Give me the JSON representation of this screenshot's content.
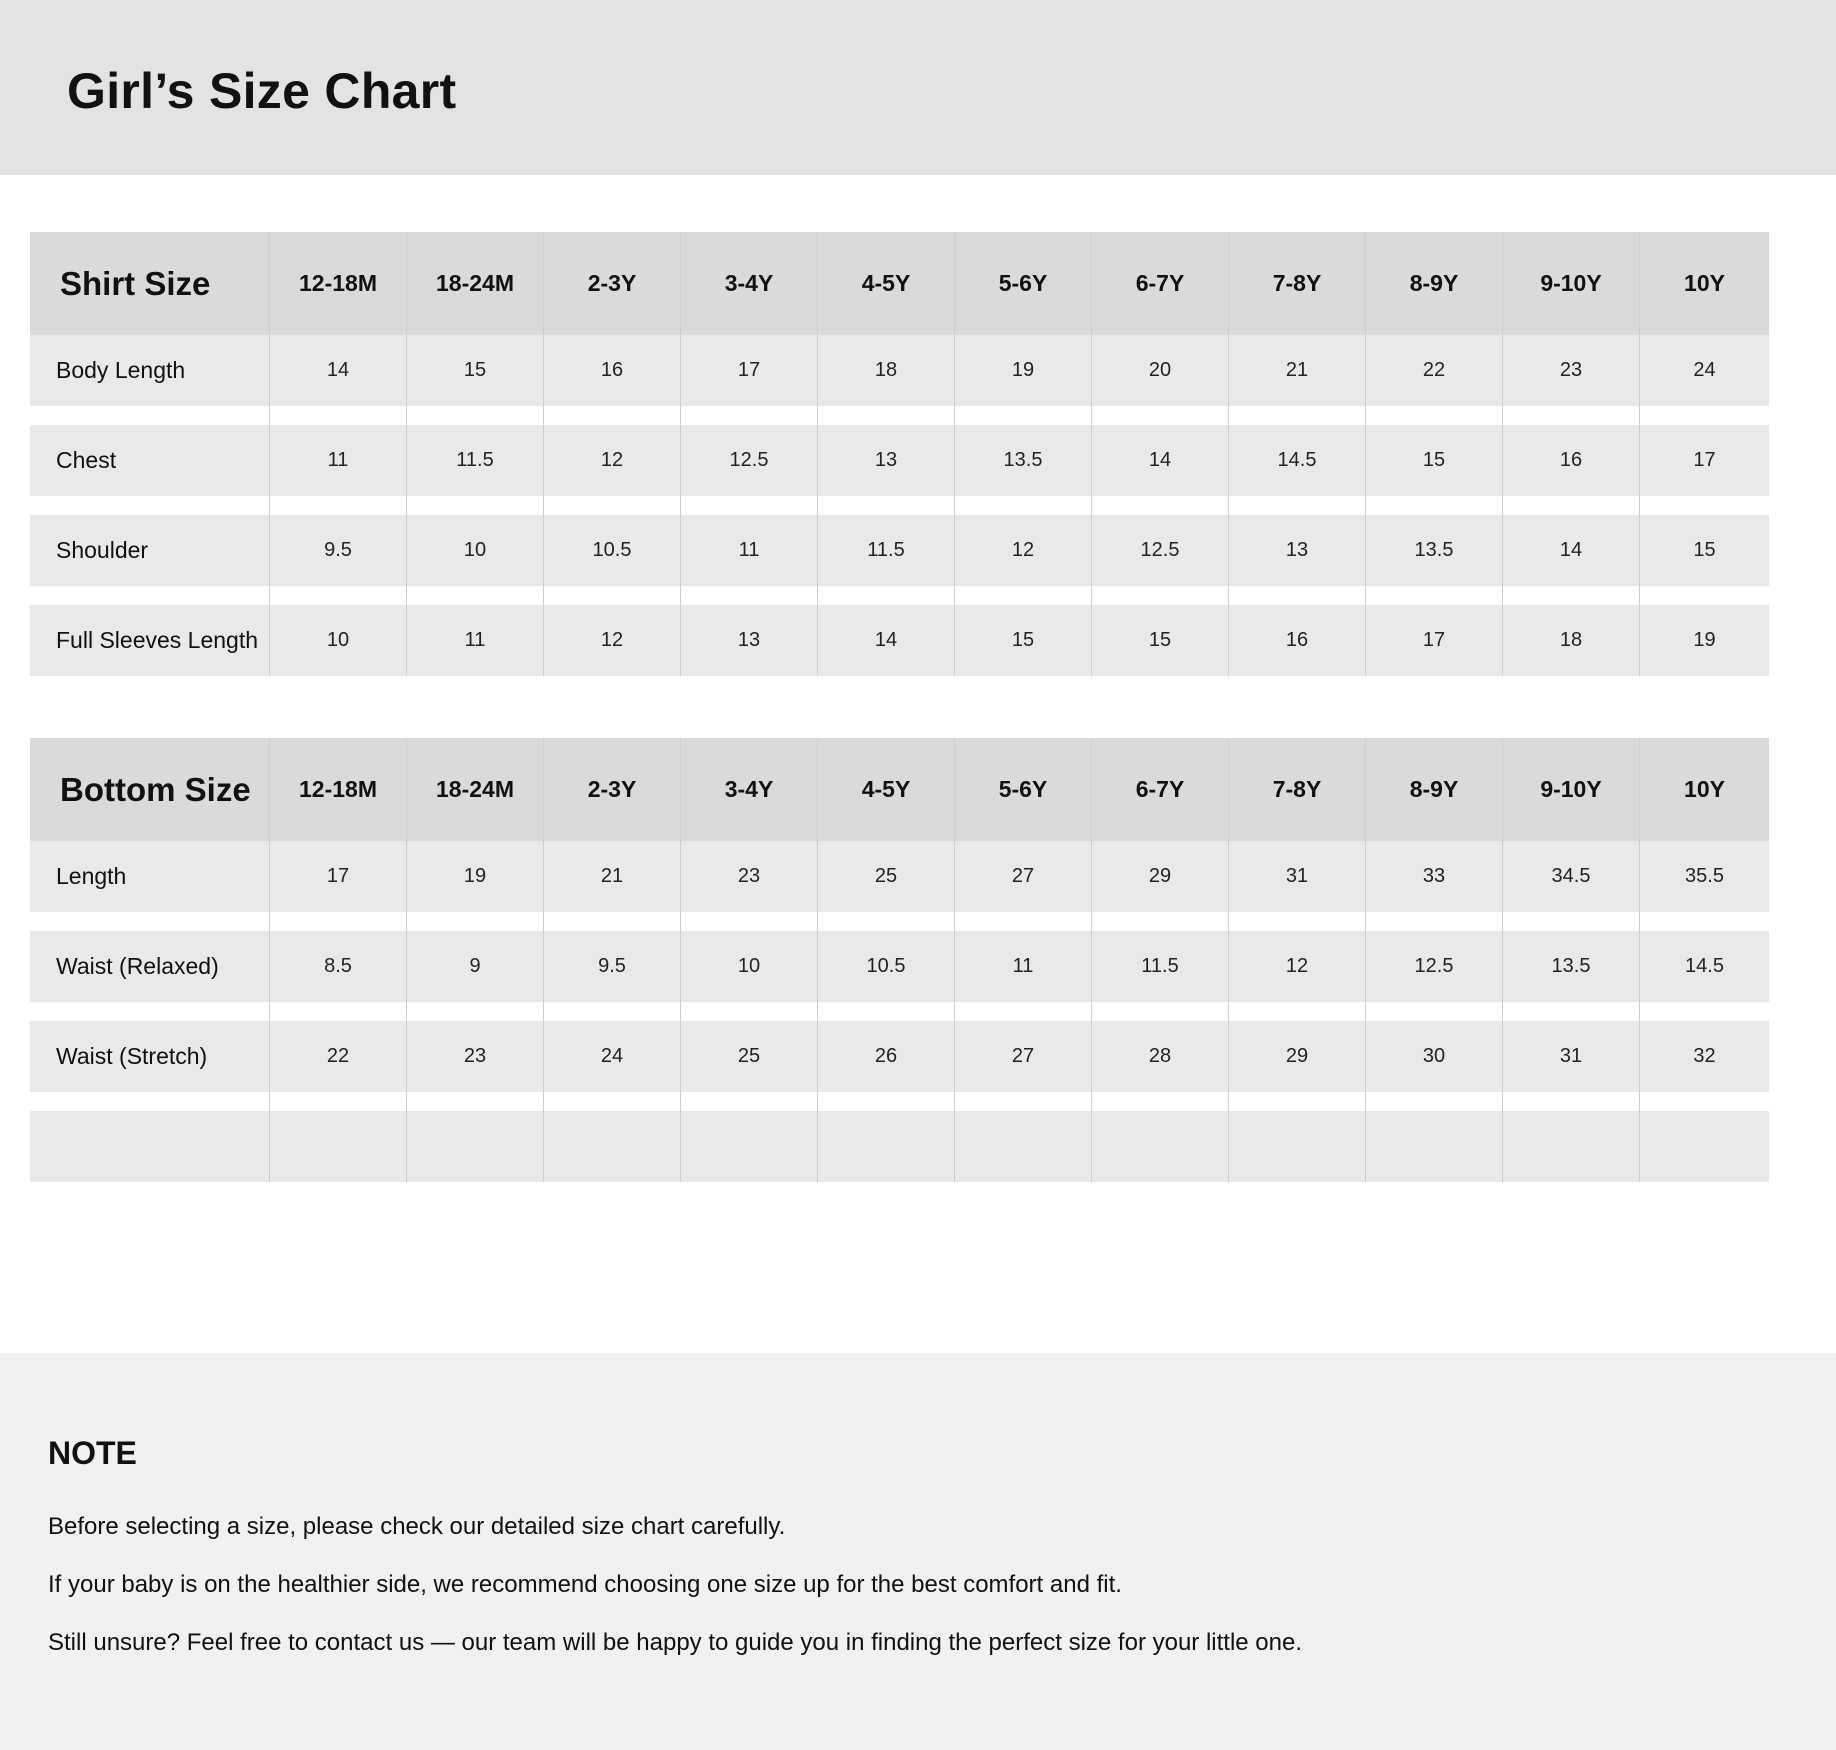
{
  "title": "Girl’s Size Chart",
  "sizes": [
    "12-18M",
    "18-24M",
    "2-3Y",
    "3-4Y",
    "4-5Y",
    "5-6Y",
    "6-7Y",
    "7-8Y",
    "8-9Y",
    "9-10Y",
    "10Y"
  ],
  "shirt": {
    "heading": "Shirt Size",
    "rows": [
      {
        "label": "Body Length",
        "values": [
          "14",
          "15",
          "16",
          "17",
          "18",
          "19",
          "20",
          "21",
          "22",
          "23",
          "24"
        ]
      },
      {
        "label": "Chest",
        "values": [
          "11",
          "11.5",
          "12",
          "12.5",
          "13",
          "13.5",
          "14",
          "14.5",
          "15",
          "16",
          "17"
        ]
      },
      {
        "label": "Shoulder",
        "values": [
          "9.5",
          "10",
          "10.5",
          "11",
          "11.5",
          "12",
          "12.5",
          "13",
          "13.5",
          "14",
          "15"
        ]
      },
      {
        "label": "Full Sleeves Length",
        "values": [
          "10",
          "11",
          "12",
          "13",
          "14",
          "15",
          "15",
          "16",
          "17",
          "18",
          "19"
        ]
      }
    ]
  },
  "bottom": {
    "heading": "Bottom Size",
    "rows": [
      {
        "label": "Length",
        "values": [
          "17",
          "19",
          "21",
          "23",
          "25",
          "27",
          "29",
          "31",
          "33",
          "34.5",
          "35.5"
        ]
      },
      {
        "label": "Waist (Relaxed)",
        "values": [
          "8.5",
          "9",
          "9.5",
          "10",
          "10.5",
          "11",
          "11.5",
          "12",
          "12.5",
          "13.5",
          "14.5"
        ]
      },
      {
        "label": "Waist (Stretch)",
        "values": [
          "22",
          "23",
          "24",
          "25",
          "26",
          "27",
          "28",
          "29",
          "30",
          "31",
          "32"
        ]
      },
      {
        "label": "",
        "values": [
          "",
          "",
          "",
          "",
          "",
          "",
          "",
          "",
          "",
          "",
          ""
        ]
      }
    ]
  },
  "note": {
    "heading": "NOTE",
    "lines": [
      "Before selecting a size, please check our detailed size chart carefully.",
      "If your baby is on the healthier side, we recommend choosing one size up for the best comfort and fit.",
      "Still unsure? Feel free to contact us — our team will be happy to guide you in finding the perfect size for your little one."
    ]
  }
}
